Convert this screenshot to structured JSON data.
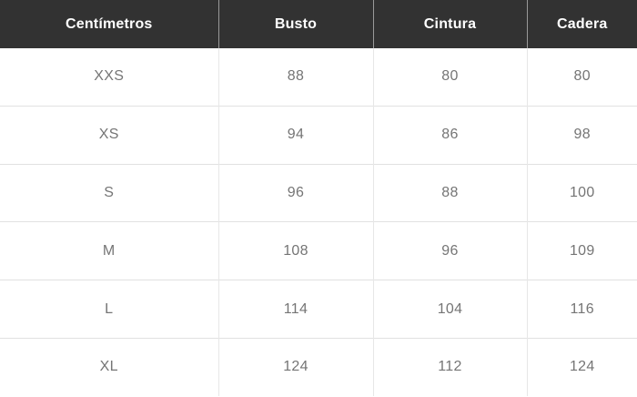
{
  "table": {
    "title": "size-chart",
    "columns": [
      {
        "label": "Centímetros"
      },
      {
        "label": "Busto"
      },
      {
        "label": "Cintura"
      },
      {
        "label": "Cadera"
      }
    ],
    "rows": [
      {
        "size": "XXS",
        "busto": "88",
        "cintura": "80",
        "cadera": "80"
      },
      {
        "size": "XS",
        "busto": "94",
        "cintura": "86",
        "cadera": "98"
      },
      {
        "size": "S",
        "busto": "96",
        "cintura": "88",
        "cadera": "100"
      },
      {
        "size": "M",
        "busto": "108",
        "cintura": "96",
        "cadera": "109"
      },
      {
        "size": "L",
        "busto": "114",
        "cintura": "104",
        "cadera": "116"
      },
      {
        "size": "XL",
        "busto": "124",
        "cintura": "112",
        "cadera": "124"
      }
    ]
  },
  "colors": {
    "header_bg": "#323232",
    "header_text": "#ffffff",
    "body_text": "#757575",
    "row_border": "#e1e1e1",
    "header_divider": "#9a9a9a"
  }
}
